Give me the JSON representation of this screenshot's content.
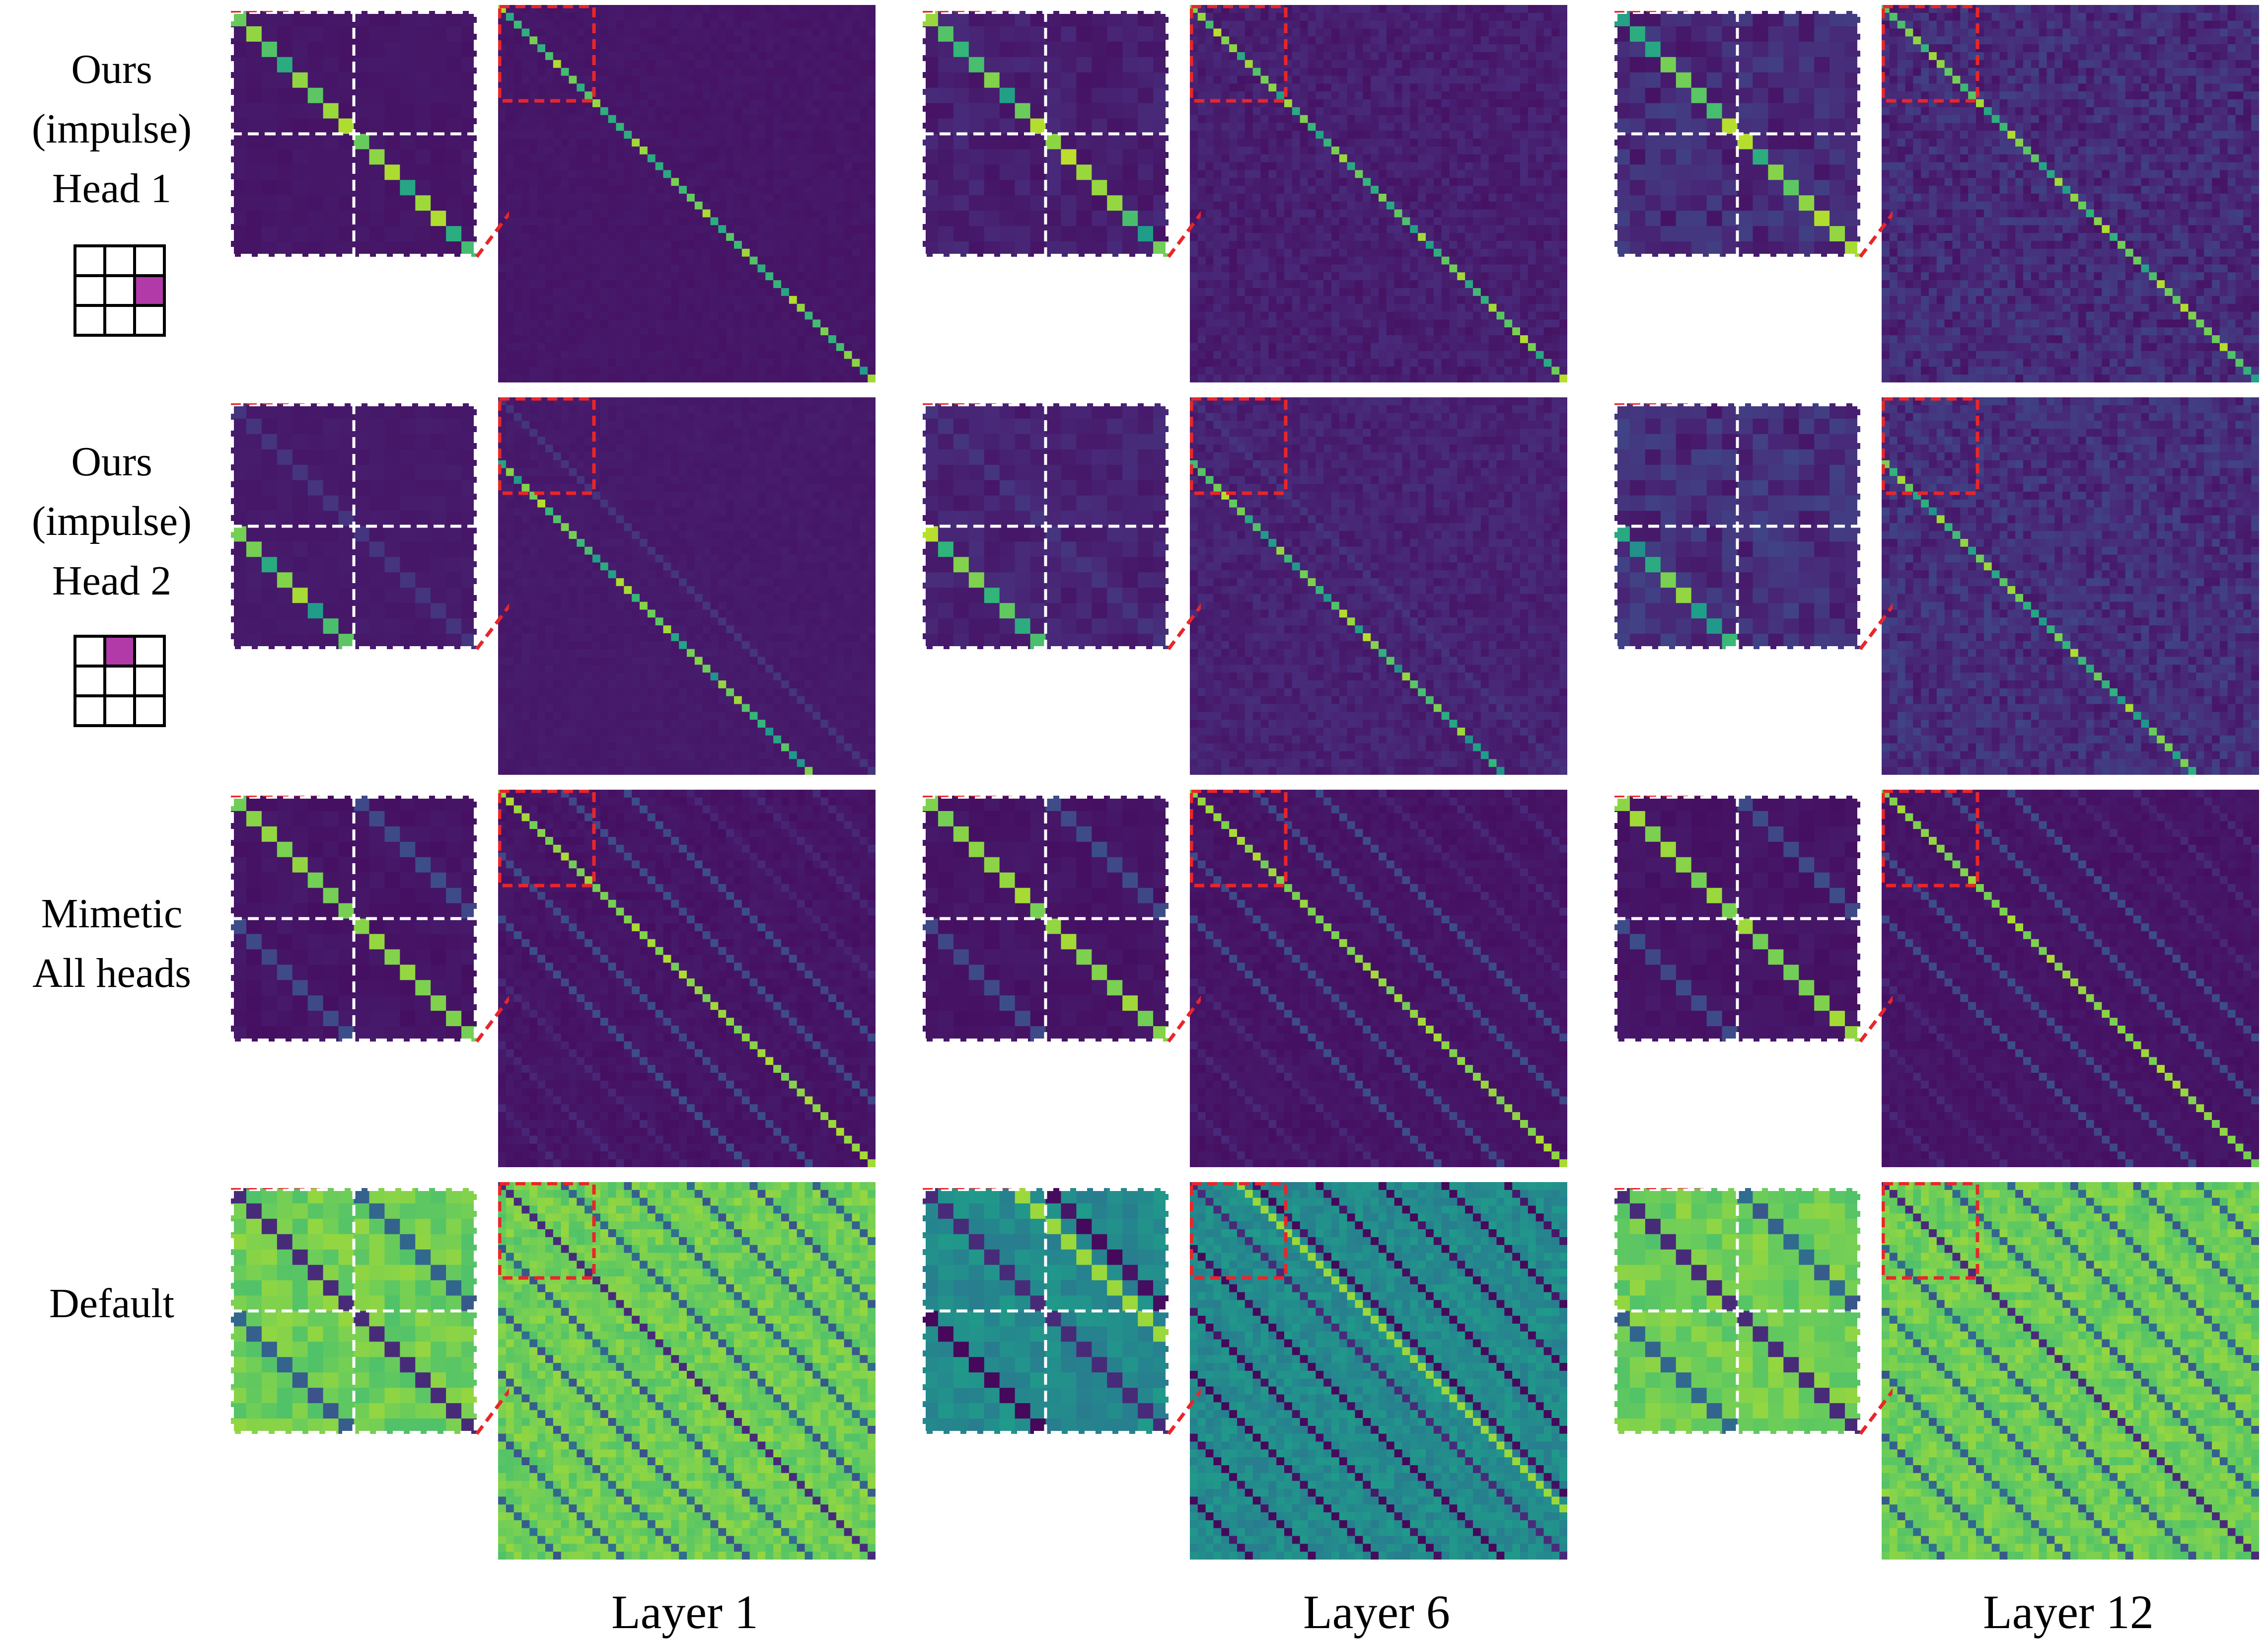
{
  "rows": [
    {
      "lines": [
        "Ours",
        "(impulse)",
        "Head 1"
      ],
      "icon": "grid-3x3-icon",
      "highlight_cell": [
        1,
        2
      ],
      "kind": "ours1"
    },
    {
      "lines": [
        "Ours",
        "(impulse)",
        "Head 2"
      ],
      "icon": "grid-3x3-icon",
      "highlight_cell": [
        0,
        1
      ],
      "kind": "ours2"
    },
    {
      "lines": [
        "Mimetic",
        "All heads"
      ],
      "icon": "",
      "kind": "mimetic"
    },
    {
      "lines": [
        "Default"
      ],
      "icon": "",
      "kind": "default"
    }
  ],
  "columns": [
    {
      "label": "Layer 1"
    },
    {
      "label": "Layer 6"
    },
    {
      "label": "Layer 12"
    }
  ],
  "colors": {
    "icon_highlight": "#b23aa8",
    "zoom_box": "#e8262a",
    "zoom_divider": "#ffffff"
  },
  "colormap": "viridis"
}
